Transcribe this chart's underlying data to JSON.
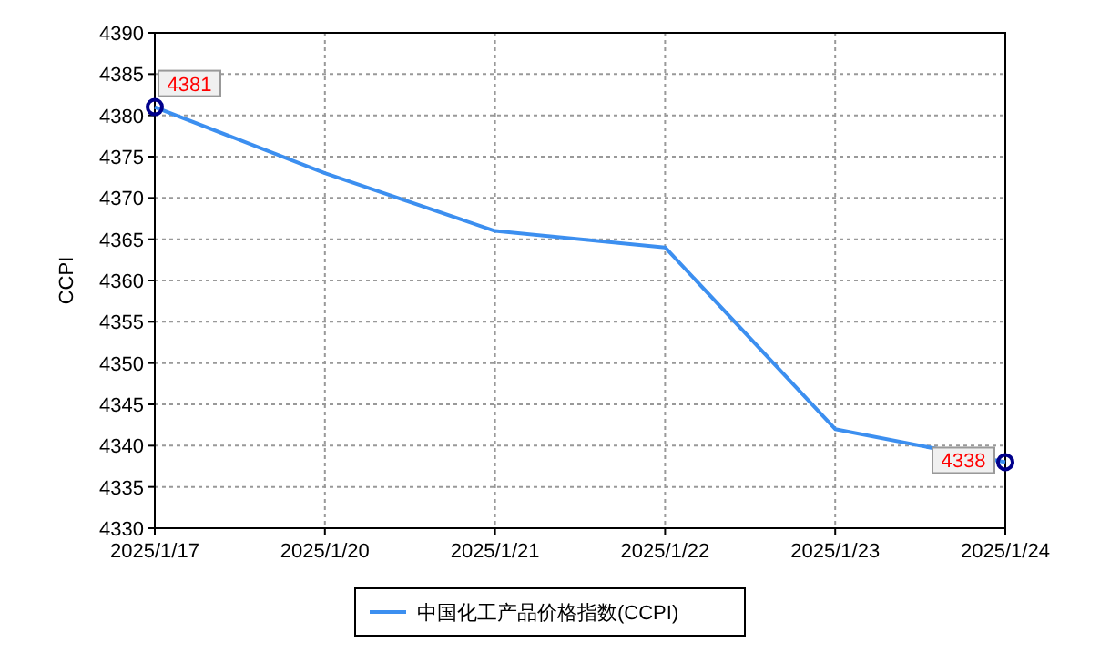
{
  "chart_data": {
    "type": "line",
    "ylabel": "CCPI",
    "categories": [
      "2025/1/17",
      "2025/1/20",
      "2025/1/21",
      "2025/1/22",
      "2025/1/23",
      "2025/1/24"
    ],
    "series": [
      {
        "name": "中国化工产品价格指数(CCPI)",
        "color": "#3c8ff0",
        "values": [
          4381,
          4373,
          4366,
          4364,
          4342,
          4338
        ]
      },
      {
        "type": "scatter",
        "color": "#00008b",
        "marker": "circle",
        "x": [
          "2025/1/17",
          "2025/1/24"
        ],
        "values": [
          4381,
          4338
        ],
        "value_labels": [
          "4381",
          "4338"
        ]
      }
    ],
    "ylim": [
      4330,
      4390
    ],
    "yticks": [
      4330,
      4335,
      4340,
      4345,
      4350,
      4355,
      4360,
      4365,
      4370,
      4375,
      4380,
      4385,
      4390
    ],
    "grid": true,
    "legend": "bottom"
  }
}
